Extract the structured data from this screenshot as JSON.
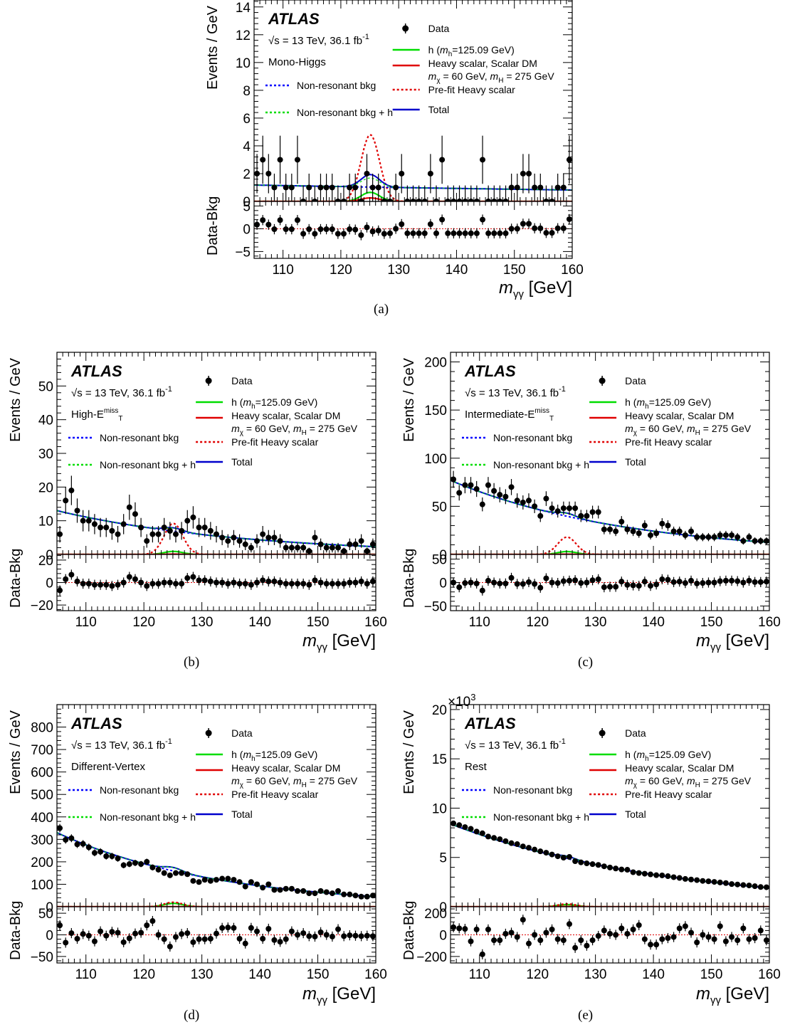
{
  "common": {
    "experiment": "ATLAS",
    "energy_text": "√s = 13 TeV, 36.1 fb",
    "energy_sup": "-1",
    "ratio_ylabel": "Data-Bkg",
    "ylabel": "Events / GeV",
    "xlabel_main": "m",
    "xlabel_sub": "γγ",
    "xlabel_unit": " [GeV]",
    "legend": {
      "data": "Data",
      "h_prefix": "h (",
      "h_m": "m",
      "h_sub": "h",
      "h_suffix": "=125.09 GeV)",
      "heavy_line1": "Heavy scalar, Scalar DM",
      "heavy_m": "m",
      "heavy_chi": "χ",
      "heavy_mid": " = 60 GeV, ",
      "heavy_mH": "m",
      "heavy_H": "H",
      "heavy_end": " = 275 GeV",
      "prefit": "Pre-fit Heavy scalar",
      "total": "Total",
      "nonres": "Non-resonant bkg",
      "nonres_h": "Non-resonant bkg + h"
    },
    "colors": {
      "data": "#000000",
      "h": "#00dd00",
      "heavy": "#e00000",
      "prefit": "#e00000",
      "total": "#0000cc",
      "nonres": "#0000ff",
      "nonres_h": "#00dd00",
      "zero_line": "#e00000"
    }
  },
  "chart_data": [
    {
      "panel": "(a)",
      "type": "scatter",
      "category": "Mono-Higgs",
      "xlim": [
        105,
        160
      ],
      "ylim": [
        0,
        14.5
      ],
      "yticks": [
        0,
        2,
        4,
        6,
        8,
        10,
        12,
        14
      ],
      "ratio_ylim": [
        -6.5,
        6
      ],
      "ratio_yticks": [
        -5,
        0,
        5
      ],
      "xticks": [
        110,
        120,
        130,
        140,
        150,
        160
      ],
      "multiplier": "",
      "data_x": [
        105.5,
        106.5,
        107.5,
        108.5,
        109.5,
        110.5,
        111.5,
        112.5,
        113.5,
        114.5,
        115.5,
        116.5,
        117.5,
        118.5,
        119.5,
        120.5,
        121.5,
        122.5,
        123.5,
        124.5,
        125.5,
        126.5,
        127.5,
        128.5,
        129.5,
        130.5,
        131.5,
        132.5,
        133.5,
        134.5,
        135.5,
        136.5,
        137.5,
        138.5,
        139.5,
        140.5,
        141.5,
        142.5,
        143.5,
        144.5,
        145.5,
        146.5,
        147.5,
        148.5,
        149.5,
        150.5,
        151.5,
        152.5,
        153.5,
        154.5,
        155.5,
        156.5,
        157.5,
        158.5,
        159.5
      ],
      "data_y": [
        2,
        3,
        2,
        1,
        3,
        1,
        1,
        3,
        0,
        1,
        0,
        1,
        1,
        1,
        0,
        0,
        1,
        1,
        0,
        2,
        1,
        1,
        0,
        0,
        1,
        2,
        0,
        0,
        0,
        0,
        2,
        0,
        3,
        0,
        0,
        0,
        0,
        0,
        0,
        3,
        0,
        0,
        0,
        0,
        1,
        1,
        2,
        2,
        1,
        1,
        0,
        0,
        1,
        1,
        3
      ],
      "ratio_y": [
        0.9,
        1.9,
        0.9,
        -0.1,
        1.9,
        -0.1,
        -0.1,
        1.9,
        -1.1,
        -0.1,
        -1.1,
        -0.1,
        -0.1,
        -0.1,
        -1.1,
        -1.1,
        -0.1,
        -0.2,
        -1.4,
        0.3,
        -0.6,
        -0.4,
        -1.1,
        -1.0,
        0.0,
        1.0,
        -1.0,
        -1.0,
        -1.0,
        -1.0,
        1.0,
        -1.0,
        2.0,
        -1.0,
        -1.0,
        -1.0,
        -1.0,
        -1.0,
        -1.0,
        2.0,
        -1.0,
        -1.0,
        -1.0,
        -1.0,
        0.0,
        0.0,
        1.1,
        1.1,
        0.1,
        0.1,
        -0.9,
        -0.9,
        0.1,
        0.1,
        2.1
      ],
      "bkg": {
        "model": "exp",
        "y_at_105": 1.18,
        "y_at_160": 0.82
      },
      "h_peak": 0.65,
      "heavy_peak": 0.25,
      "prefit_peak": 4.8,
      "signal_mu": 125.09,
      "signal_sigma": 1.6
    },
    {
      "panel": "(b)",
      "type": "scatter",
      "category": "High-E",
      "category_sub": "T",
      "category_sup": "miss",
      "xlim": [
        105,
        160
      ],
      "ylim": [
        0,
        60
      ],
      "yticks": [
        0,
        10,
        20,
        30,
        40,
        50
      ],
      "ratio_ylim": [
        -25,
        25
      ],
      "ratio_yticks": [
        -20,
        0,
        20
      ],
      "xticks": [
        110,
        120,
        130,
        140,
        150,
        160
      ],
      "multiplier": "",
      "data_x": [
        105.5,
        106.5,
        107.5,
        108.5,
        109.5,
        110.5,
        111.5,
        112.5,
        113.5,
        114.5,
        115.5,
        116.5,
        117.5,
        118.5,
        119.5,
        120.5,
        121.5,
        122.5,
        123.5,
        124.5,
        125.5,
        126.5,
        127.5,
        128.5,
        129.5,
        130.5,
        131.5,
        132.5,
        133.5,
        134.5,
        135.5,
        136.5,
        137.5,
        138.5,
        139.5,
        140.5,
        141.5,
        142.5,
        143.5,
        144.5,
        145.5,
        146.5,
        147.5,
        148.5,
        149.5,
        150.5,
        151.5,
        152.5,
        153.5,
        154.5,
        155.5,
        156.5,
        157.5,
        158.5,
        159.5
      ],
      "data_y": [
        6,
        16,
        19,
        13,
        10,
        10,
        9,
        8,
        8,
        7,
        6,
        9,
        14,
        12,
        8,
        4,
        6,
        6,
        8,
        7,
        6,
        7,
        10,
        11,
        8,
        8,
        7,
        6,
        5,
        4,
        5,
        4,
        3,
        2,
        4,
        6,
        5,
        5,
        4,
        2,
        2,
        2,
        2,
        1,
        5,
        3,
        2,
        2,
        2,
        1,
        3,
        3,
        4,
        1,
        3
      ],
      "ratio_y": [
        -7,
        3,
        7,
        1,
        -1,
        -1,
        -2,
        -2,
        -2,
        -3,
        -2,
        0,
        5,
        3,
        0,
        -3,
        -1,
        -1,
        0,
        0,
        -1,
        -1,
        4,
        5,
        2,
        2,
        1,
        0,
        0,
        -1,
        0,
        -1,
        -1,
        -2,
        0,
        2,
        1,
        1,
        0,
        -1,
        -1,
        -1,
        -1,
        -2,
        2,
        0,
        -1,
        -1,
        -1,
        -1,
        0,
        0,
        1,
        -1,
        1
      ],
      "bkg": {
        "model": "exp",
        "y_at_105": 13.0,
        "y_at_160": 2.3
      },
      "h_peak": 0.9,
      "heavy_peak": 0.1,
      "prefit_peak": 9.2,
      "signal_mu": 125.09,
      "signal_sigma": 1.6
    },
    {
      "panel": "(c)",
      "type": "scatter",
      "category": "Intermediate-E",
      "category_sub": "T",
      "category_sup": "miss",
      "xlim": [
        105,
        160
      ],
      "ylim": [
        0,
        210
      ],
      "yticks": [
        0,
        50,
        100,
        150,
        200
      ],
      "ratio_ylim": [
        -60,
        60
      ],
      "ratio_yticks": [
        -50,
        0,
        50
      ],
      "xticks": [
        110,
        120,
        130,
        140,
        150,
        160
      ],
      "multiplier": "",
      "data_x": [
        105.5,
        106.5,
        107.5,
        108.5,
        109.5,
        110.5,
        111.5,
        112.5,
        113.5,
        114.5,
        115.5,
        116.5,
        117.5,
        118.5,
        119.5,
        120.5,
        121.5,
        122.5,
        123.5,
        124.5,
        125.5,
        126.5,
        127.5,
        128.5,
        129.5,
        130.5,
        131.5,
        132.5,
        133.5,
        134.5,
        135.5,
        136.5,
        137.5,
        138.5,
        139.5,
        140.5,
        141.5,
        142.5,
        143.5,
        144.5,
        145.5,
        146.5,
        147.5,
        148.5,
        149.5,
        150.5,
        151.5,
        152.5,
        153.5,
        154.5,
        155.5,
        156.5,
        157.5,
        158.5,
        159.5
      ],
      "data_y": [
        78,
        64,
        72,
        72,
        68,
        52,
        72,
        66,
        62,
        60,
        70,
        56,
        54,
        56,
        50,
        40,
        58,
        48,
        45,
        48,
        48,
        48,
        40,
        40,
        44,
        44,
        26,
        26,
        24,
        34,
        26,
        24,
        22,
        30,
        20,
        22,
        32,
        30,
        24,
        24,
        20,
        24,
        18,
        18,
        18,
        18,
        20,
        20,
        20,
        18,
        14,
        18,
        14,
        14,
        14
      ],
      "ratio_y": [
        0,
        -10,
        -1,
        0,
        -2,
        -17,
        4,
        0,
        -2,
        -2,
        10,
        -3,
        -3,
        1,
        -3,
        -11,
        9,
        0,
        -1,
        3,
        4,
        5,
        -1,
        0,
        5,
        7,
        -10,
        -9,
        -9,
        2,
        -5,
        -6,
        -7,
        2,
        -7,
        -4,
        7,
        6,
        1,
        2,
        -1,
        4,
        -2,
        -1,
        0,
        0,
        3,
        4,
        4,
        3,
        0,
        4,
        1,
        1,
        2
      ],
      "bkg": {
        "model": "exp",
        "y_at_105": 77.0,
        "y_at_160": 12.5
      },
      "h_peak": 3.0,
      "heavy_peak": 0.3,
      "prefit_peak": 18.0,
      "signal_mu": 125.09,
      "signal_sigma": 1.6
    },
    {
      "panel": "(d)",
      "type": "scatter",
      "category": "Different-Vertex",
      "xlim": [
        105,
        160
      ],
      "ylim": [
        0,
        900
      ],
      "yticks": [
        0,
        100,
        200,
        300,
        400,
        500,
        600,
        700,
        800
      ],
      "ratio_ylim": [
        -65,
        65
      ],
      "ratio_yticks": [
        -50,
        0,
        50
      ],
      "xticks": [
        110,
        120,
        130,
        140,
        150,
        160
      ],
      "multiplier": "",
      "data_x": [
        105.5,
        106.5,
        107.5,
        108.5,
        109.5,
        110.5,
        111.5,
        112.5,
        113.5,
        114.5,
        115.5,
        116.5,
        117.5,
        118.5,
        119.5,
        120.5,
        121.5,
        122.5,
        123.5,
        124.5,
        125.5,
        126.5,
        127.5,
        128.5,
        129.5,
        130.5,
        131.5,
        132.5,
        133.5,
        134.5,
        135.5,
        136.5,
        137.5,
        138.5,
        139.5,
        140.5,
        141.5,
        142.5,
        143.5,
        144.5,
        145.5,
        146.5,
        147.5,
        148.5,
        149.5,
        150.5,
        151.5,
        152.5,
        153.5,
        154.5,
        155.5,
        156.5,
        157.5,
        158.5,
        159.5
      ],
      "data_y": [
        350,
        298,
        305,
        278,
        280,
        265,
        240,
        245,
        225,
        225,
        215,
        185,
        190,
        195,
        190,
        200,
        175,
        165,
        150,
        140,
        150,
        150,
        145,
        115,
        110,
        120,
        115,
        120,
        125,
        125,
        120,
        110,
        90,
        110,
        100,
        85,
        100,
        75,
        75,
        80,
        80,
        70,
        70,
        60,
        60,
        70,
        65,
        60,
        70,
        55,
        55,
        50,
        45,
        45,
        50
      ],
      "ratio_y": [
        22,
        -18,
        4,
        -9,
        2,
        -2,
        -15,
        8,
        -2,
        7,
        5,
        -17,
        -8,
        3,
        5,
        22,
        32,
        0,
        -10,
        -27,
        -5,
        2,
        4,
        -17,
        -10,
        -10,
        -9,
        3,
        16,
        17,
        16,
        -9,
        -20,
        16,
        8,
        -9,
        14,
        -12,
        -16,
        -10,
        8,
        0,
        4,
        -3,
        -4,
        6,
        0,
        -4,
        13,
        -3,
        -1,
        -2,
        -3,
        -2,
        -3
      ],
      "bkg": {
        "model": "exp",
        "y_at_105": 330.0,
        "y_at_160": 45.0
      },
      "h_peak": 15.0,
      "heavy_peak": 0.5,
      "prefit_peak": 20.0,
      "signal_mu": 125.09,
      "signal_sigma": 1.6
    },
    {
      "panel": "(e)",
      "type": "scatter",
      "category": "Rest",
      "xlim": [
        105,
        160
      ],
      "ylim": [
        0,
        20.5
      ],
      "yticks": [
        0,
        5,
        10,
        15,
        20
      ],
      "ratio_ylim": [
        -260,
        260
      ],
      "ratio_yticks": [
        -200,
        0,
        200
      ],
      "xticks": [
        110,
        120,
        130,
        140,
        150,
        160
      ],
      "multiplier": "×10",
      "multiplier_sup": "3",
      "data_x": [
        105.5,
        106.5,
        107.5,
        108.5,
        109.5,
        110.5,
        111.5,
        112.5,
        113.5,
        114.5,
        115.5,
        116.5,
        117.5,
        118.5,
        119.5,
        120.5,
        121.5,
        122.5,
        123.5,
        124.5,
        125.5,
        126.5,
        127.5,
        128.5,
        129.5,
        130.5,
        131.5,
        132.5,
        133.5,
        134.5,
        135.5,
        136.5,
        137.5,
        138.5,
        139.5,
        140.5,
        141.5,
        142.5,
        143.5,
        144.5,
        145.5,
        146.5,
        147.5,
        148.5,
        149.5,
        150.5,
        151.5,
        152.5,
        153.5,
        154.5,
        155.5,
        156.5,
        157.5,
        158.5,
        159.5
      ],
      "data_y": [
        8.45,
        8.28,
        8.08,
        7.9,
        7.62,
        7.45,
        7.12,
        6.98,
        6.85,
        6.65,
        6.45,
        6.35,
        6.12,
        5.98,
        5.8,
        5.62,
        5.48,
        5.3,
        5.12,
        4.98,
        5.05,
        4.62,
        4.5,
        4.4,
        4.32,
        4.24,
        4.1,
        3.98,
        3.88,
        3.78,
        3.75,
        3.5,
        3.42,
        3.35,
        3.28,
        3.2,
        3.18,
        3.1,
        3.0,
        2.92,
        2.82,
        2.76,
        2.7,
        2.62,
        2.58,
        2.52,
        2.46,
        2.4,
        2.3,
        2.26,
        2.2,
        2.16,
        2.08,
        2.0,
        1.98
      ],
      "ratio_y": [
        70,
        60,
        55,
        -60,
        50,
        -180,
        50,
        -50,
        -50,
        10,
        20,
        -20,
        140,
        -80,
        0,
        -50,
        20,
        50,
        -40,
        -50,
        100,
        -120,
        -50,
        -100,
        -50,
        -10,
        40,
        10,
        0,
        60,
        10,
        50,
        90,
        -40,
        -90,
        -90,
        -40,
        -30,
        -20,
        60,
        80,
        20,
        -70,
        0,
        -20,
        -40,
        80,
        -60,
        -20,
        -50,
        60,
        -40,
        -30,
        40,
        -50
      ],
      "bkg": {
        "model": "exp",
        "y_at_105": 8.4,
        "y_at_160": 1.9
      },
      "h_peak": 0.22,
      "heavy_peak": 0.03,
      "prefit_peak": 0.28,
      "signal_mu": 125.09,
      "signal_sigma": 1.6
    }
  ],
  "captions": [
    "(a)",
    "(b)",
    "(c)",
    "(d)",
    "(e)"
  ]
}
